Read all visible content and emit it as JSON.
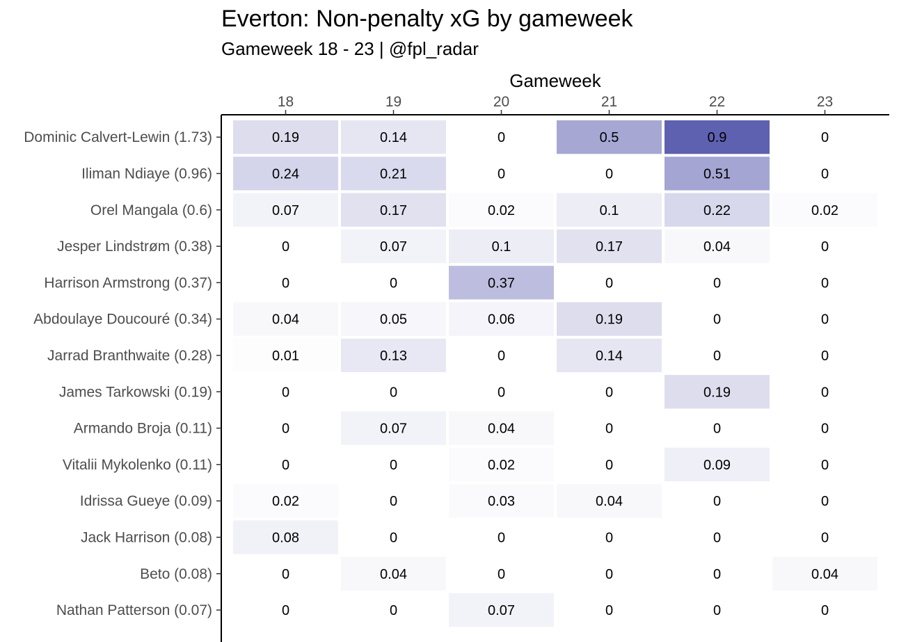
{
  "chart_data": {
    "type": "heatmap",
    "title": "Everton: Non-penalty xG by gameweek",
    "subtitle": "Gameweek 18 - 23 | @fpl_radar",
    "xlabel": "Gameweek",
    "x_axis_position": "top",
    "columns": [
      "18",
      "19",
      "20",
      "21",
      "22",
      "23"
    ],
    "rows": [
      "Dominic Calvert-Lewin (1.73)",
      "Iliman Ndiaye (0.96)",
      "Orel Mangala (0.6)",
      "Jesper Lindstrøm (0.38)",
      "Harrison Armstrong (0.37)",
      "Abdoulaye Doucouré (0.34)",
      "Jarrad Branthwaite (0.28)",
      "James Tarkowski (0.19)",
      "Armando Broja (0.11)",
      "Vitalii Mykolenko (0.11)",
      "Idrissa Gueye (0.09)",
      "Jack Harrison (0.08)",
      "Beto (0.08)",
      "Nathan Patterson (0.07)"
    ],
    "values": [
      [
        0.19,
        0.14,
        0,
        0.5,
        0.9,
        0
      ],
      [
        0.24,
        0.21,
        0,
        0,
        0.51,
        0
      ],
      [
        0.07,
        0.17,
        0.02,
        0.1,
        0.22,
        0.02
      ],
      [
        0,
        0.07,
        0.1,
        0.17,
        0.04,
        0
      ],
      [
        0,
        0,
        0.37,
        0,
        0,
        0
      ],
      [
        0.04,
        0.05,
        0.06,
        0.19,
        0,
        0
      ],
      [
        0.01,
        0.13,
        0,
        0.14,
        0,
        0
      ],
      [
        0,
        0,
        0,
        0,
        0.19,
        0
      ],
      [
        0,
        0.07,
        0.04,
        0,
        0,
        0
      ],
      [
        0,
        0,
        0.02,
        0,
        0.09,
        0
      ],
      [
        0.02,
        0,
        0.03,
        0.04,
        0,
        0
      ],
      [
        0.08,
        0,
        0,
        0,
        0,
        0
      ],
      [
        0,
        0.04,
        0,
        0,
        0,
        0.04
      ],
      [
        0,
        0,
        0.07,
        0,
        0,
        0
      ]
    ],
    "color_low": "#ffffff",
    "color_high": "#5e60b0",
    "value_max": 0.9,
    "grid": false
  }
}
